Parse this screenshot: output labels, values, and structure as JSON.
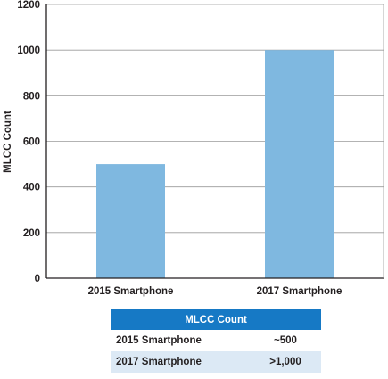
{
  "chart_data": {
    "type": "bar",
    "categories": [
      "2015 Smartphone",
      "2017 Smartphone"
    ],
    "values": [
      500,
      1000
    ],
    "title": "",
    "xlabel": "",
    "ylabel": "MLCC Count",
    "ylim": [
      0,
      1200
    ],
    "yticks": [
      "0",
      "200",
      "400",
      "600",
      "800",
      "1000",
      "1200"
    ],
    "grid": true,
    "bar_color": "#7fb8e0"
  },
  "table": {
    "header": "MLCC Count",
    "rows": [
      {
        "label": "2015 Smartphone",
        "value": "~500"
      },
      {
        "label": "2017 Smartphone",
        "value": ">1,000"
      }
    ],
    "header_color": "#1679c5",
    "stripe_color": "#dce9f5"
  }
}
